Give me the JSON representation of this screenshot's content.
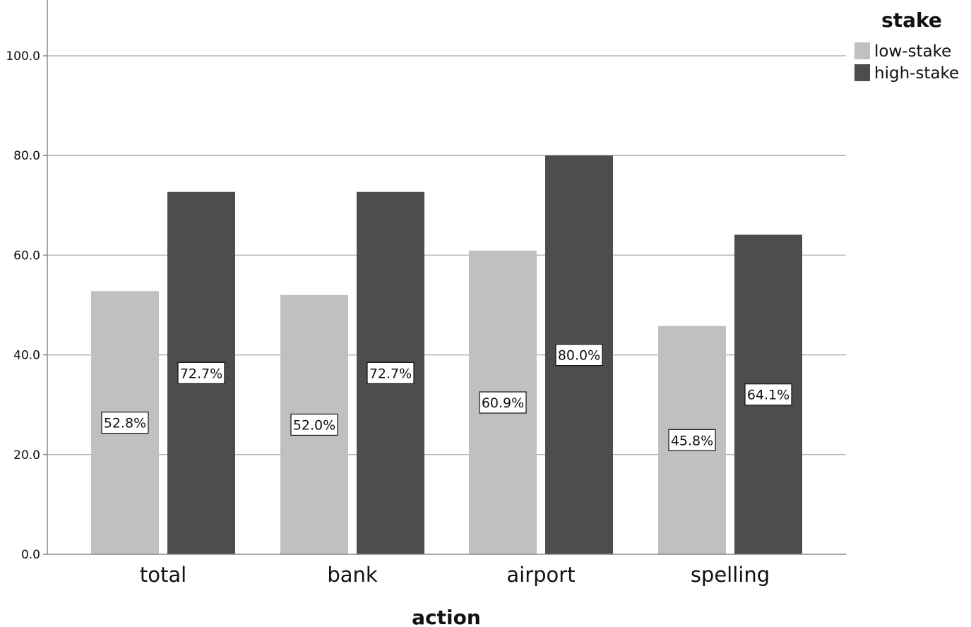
{
  "chart_data": {
    "type": "bar",
    "categories": [
      "total",
      "bank",
      "airport",
      "spelling"
    ],
    "series": [
      {
        "name": "low-stake",
        "values": [
          52.8,
          52.0,
          60.9,
          45.8
        ],
        "labels": [
          "52.8%",
          "52.0%",
          "60.9%",
          "45.8%"
        ],
        "color": "#c0c0c0"
      },
      {
        "name": "high-stake",
        "values": [
          72.7,
          72.7,
          80.0,
          64.1
        ],
        "labels": [
          "72.7%",
          "72.7%",
          "80.0%",
          "64.1%"
        ],
        "color": "#4d4d4d"
      }
    ],
    "title": "",
    "xlabel": "action",
    "ylabel": "",
    "ylim": [
      0,
      100
    ],
    "yticks": [
      "0.0",
      "20.0",
      "40.0",
      "60.0",
      "80.0",
      "100.0"
    ],
    "grid": true,
    "legend": {
      "title": "stake",
      "position": "top-right"
    }
  }
}
